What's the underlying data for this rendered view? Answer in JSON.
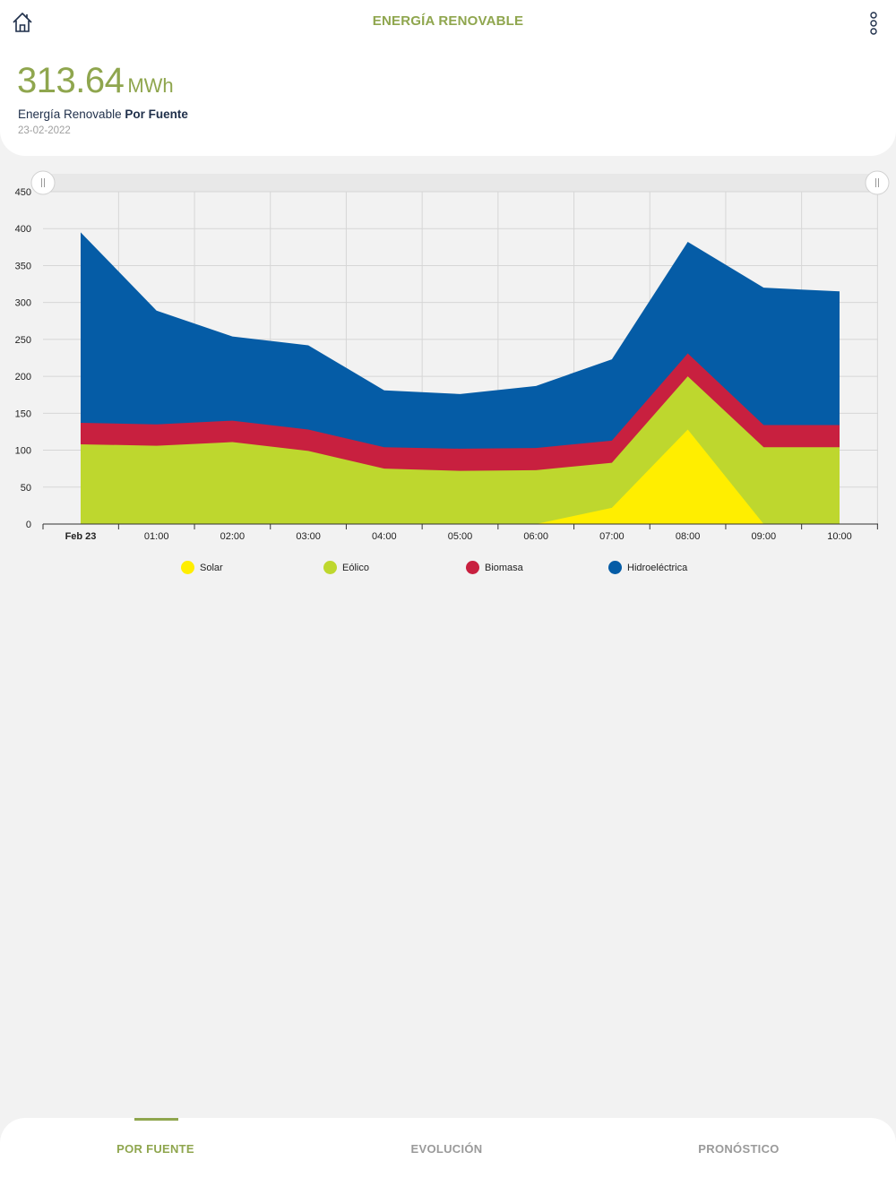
{
  "header": {
    "title": "ENERGÍA RENOVABLE"
  },
  "summary": {
    "value": "313.64",
    "unit": "MWh",
    "subtitle_prefix": "Energía Renovable",
    "subtitle_bold": "Por Fuente",
    "date": "23-02-2022"
  },
  "colors": {
    "accent": "#8fa64e",
    "solar": "#ffee00",
    "eolico": "#bed72e",
    "biomasa": "#c8203f",
    "hidro": "#055ca6"
  },
  "legend": [
    {
      "label": "Solar",
      "color": "#ffee00"
    },
    {
      "label": "Eólico",
      "color": "#bed72e"
    },
    {
      "label": "Biomasa",
      "color": "#c8203f"
    },
    {
      "label": "Hidroeléctrica",
      "color": "#055ca6"
    }
  ],
  "tabs": [
    {
      "label": "POR FUENTE",
      "active": true
    },
    {
      "label": "EVOLUCIÓN",
      "active": false
    },
    {
      "label": "PRONÓSTICO",
      "active": false
    }
  ],
  "chart_data": {
    "type": "area",
    "stacked": true,
    "categories": [
      "Feb 23",
      "01:00",
      "02:00",
      "03:00",
      "04:00",
      "05:00",
      "06:00",
      "07:00",
      "08:00",
      "09:00",
      "10:00"
    ],
    "series": [
      {
        "name": "Solar",
        "color": "#ffee00",
        "values": [
          0,
          0,
          0,
          0,
          0,
          0,
          0,
          22,
          128,
          0,
          0
        ]
      },
      {
        "name": "Eólico",
        "color": "#bed72e",
        "values": [
          108,
          106,
          111,
          99,
          75,
          72,
          73,
          61,
          72,
          104,
          104
        ]
      },
      {
        "name": "Biomasa",
        "color": "#c8203f",
        "values": [
          29,
          29,
          29,
          29,
          29,
          30,
          30,
          30,
          31,
          30,
          30
        ]
      },
      {
        "name": "Hidroeléctrica",
        "color": "#055ca6",
        "values": [
          258,
          154,
          114,
          114,
          77,
          74,
          84,
          110,
          151,
          186,
          181
        ]
      }
    ],
    "yticks": [
      0,
      50,
      100,
      150,
      200,
      250,
      300,
      350,
      400,
      450
    ],
    "ylim": [
      0,
      450
    ],
    "grid": true,
    "xlabel": "",
    "ylabel": ""
  }
}
